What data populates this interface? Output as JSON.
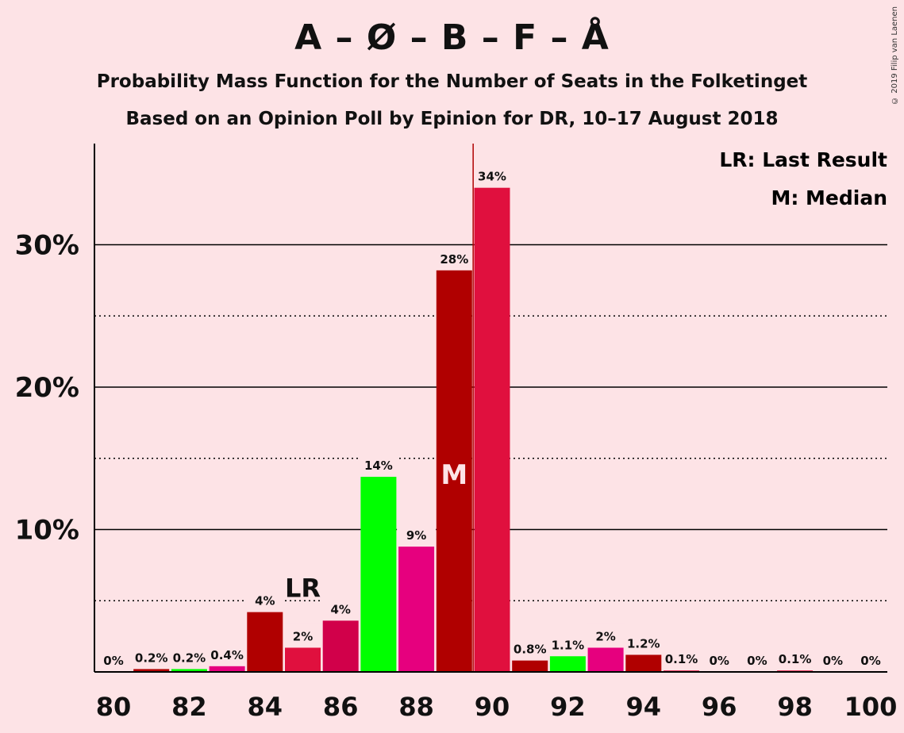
{
  "title": "A – Ø – B – F – Å",
  "subtitle": "Probability Mass Function for the Number of Seats in the Folketinget",
  "subtitle2": "Based on an Opinion Poll by Epinion for DR, 10–17 August 2018",
  "copyright": "© 2019 Filip van Laenen",
  "legend": {
    "lr": "LR: Last Result",
    "m": "M: Median"
  },
  "markers": {
    "lr_label": "LR",
    "median_label": "M"
  },
  "colors": {
    "background": "#fde3e6",
    "dark_red": "#b00000",
    "crimson": "#e0103e",
    "green": "#00ff00",
    "magenta": "#e6007e",
    "rose": "#d1004a"
  },
  "chart_data": {
    "type": "bar",
    "x": [
      80,
      81,
      82,
      83,
      84,
      85,
      86,
      87,
      88,
      89,
      90,
      91,
      92,
      93,
      94,
      95,
      96,
      97,
      98,
      99,
      100
    ],
    "values": [
      0,
      0.2,
      0.2,
      0.4,
      4.2,
      1.7,
      3.6,
      13.7,
      8.8,
      28.2,
      34.0,
      0.8,
      1.1,
      1.7,
      1.2,
      0.1,
      0,
      0,
      0.1,
      0,
      0
    ],
    "data_labels": [
      "0%",
      "0.2%",
      "0.2%",
      "0.4%",
      "4%",
      "2%",
      "4%",
      "14%",
      "9%",
      "28%",
      "34%",
      "0.8%",
      "1.1%",
      "2%",
      "1.2%",
      "0.1%",
      "0%",
      "0%",
      "0.1%",
      "0%",
      "0%"
    ],
    "bar_colors": [
      "#e0103e",
      "#b00000",
      "#00ff00",
      "#e6007e",
      "#b00000",
      "#e0103e",
      "#d1004a",
      "#00ff00",
      "#e6007e",
      "#b00000",
      "#e0103e",
      "#b00000",
      "#00ff00",
      "#e6007e",
      "#b00000",
      "#e0103e",
      "#e0103e",
      "#e0103e",
      "#e0103e",
      "#e0103e",
      "#e0103e"
    ],
    "x_ticks": [
      80,
      82,
      84,
      86,
      88,
      90,
      92,
      94,
      96,
      98,
      100
    ],
    "y_ticks": [
      "10%",
      "20%",
      "30%"
    ],
    "y_tick_values": [
      10,
      20,
      30
    ],
    "y_minor_values": [
      5,
      15,
      25
    ],
    "ylim": [
      0,
      37
    ],
    "last_result_seat": 85,
    "median_seat": 89,
    "legend_position": "top-right"
  }
}
